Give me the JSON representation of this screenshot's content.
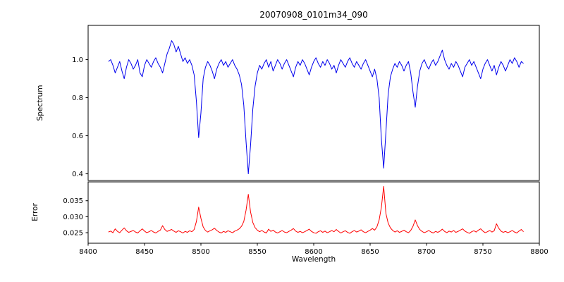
{
  "figure": {
    "title": "20070908_0101m34_090",
    "xlabel": "Wavelength",
    "ylabel_top": "Spectrum",
    "ylabel_bottom": "Error",
    "background": "#ffffff",
    "spectrum_color": "#0000ee",
    "error_color": "#ff0000"
  },
  "chart_data": [
    {
      "type": "line",
      "title": "20070908_0101m34_090",
      "ylabel": "Spectrum",
      "xlabel": "",
      "color": "#0000ee",
      "xlim": [
        8400,
        8800
      ],
      "ylim": [
        0.365,
        1.18
      ],
      "yticks": [
        0.4,
        0.6,
        0.8,
        1.0
      ],
      "ytick_labels": [
        "0.4",
        "0.6",
        "0.8",
        "1.0"
      ],
      "grid": false,
      "legend": false,
      "x_start": 8418,
      "x_step": 2,
      "values": [
        0.99,
        1.0,
        0.97,
        0.93,
        0.96,
        0.99,
        0.94,
        0.9,
        0.96,
        1.0,
        0.98,
        0.95,
        0.97,
        1.0,
        0.93,
        0.91,
        0.97,
        1.0,
        0.98,
        0.96,
        0.99,
        1.01,
        0.98,
        0.96,
        0.93,
        0.98,
        1.03,
        1.06,
        1.1,
        1.08,
        1.04,
        1.07,
        1.03,
        0.99,
        1.01,
        0.98,
        1.0,
        0.97,
        0.92,
        0.78,
        0.59,
        0.72,
        0.9,
        0.96,
        0.99,
        0.97,
        0.94,
        0.9,
        0.95,
        0.98,
        1.0,
        0.97,
        0.99,
        0.96,
        0.98,
        1.0,
        0.97,
        0.95,
        0.92,
        0.87,
        0.76,
        0.57,
        0.4,
        0.55,
        0.74,
        0.86,
        0.93,
        0.97,
        0.95,
        0.98,
        1.0,
        0.96,
        0.99,
        0.94,
        0.97,
        1.0,
        0.98,
        0.95,
        0.98,
        1.0,
        0.97,
        0.94,
        0.91,
        0.96,
        0.99,
        0.97,
        1.0,
        0.98,
        0.95,
        0.92,
        0.96,
        0.99,
        1.01,
        0.98,
        0.96,
        0.99,
        0.97,
        1.0,
        0.98,
        0.95,
        0.97,
        0.93,
        0.97,
        1.0,
        0.98,
        0.96,
        0.99,
        1.01,
        0.98,
        0.96,
        0.99,
        0.97,
        0.95,
        0.98,
        1.0,
        0.97,
        0.94,
        0.91,
        0.95,
        0.9,
        0.8,
        0.58,
        0.43,
        0.62,
        0.82,
        0.91,
        0.95,
        0.98,
        0.96,
        0.99,
        0.97,
        0.94,
        0.97,
        0.99,
        0.93,
        0.83,
        0.75,
        0.86,
        0.94,
        0.98,
        1.0,
        0.97,
        0.95,
        0.98,
        1.0,
        0.97,
        0.99,
        1.02,
        1.05,
        1.0,
        0.97,
        0.95,
        0.98,
        0.96,
        0.99,
        0.97,
        0.94,
        0.91,
        0.96,
        0.98,
        1.0,
        0.97,
        0.99,
        0.96,
        0.93,
        0.9,
        0.95,
        0.98,
        1.0,
        0.97,
        0.94,
        0.97,
        0.92,
        0.96,
        0.99,
        0.97,
        0.94,
        0.97,
        1.0,
        0.98,
        1.01,
        0.99,
        0.96,
        0.99,
        0.98
      ]
    },
    {
      "type": "line",
      "title": "",
      "ylabel": "Error",
      "xlabel": "Wavelength",
      "color": "#ff0000",
      "xlim": [
        8400,
        8800
      ],
      "ylim": [
        0.0217,
        0.0409
      ],
      "yticks": [
        0.025,
        0.03,
        0.035
      ],
      "ytick_labels": [
        "0.025",
        "0.030",
        "0.035"
      ],
      "xticks": [
        8400,
        8450,
        8500,
        8550,
        8600,
        8650,
        8700,
        8750,
        8800
      ],
      "xtick_labels": [
        "8400",
        "8450",
        "8500",
        "8550",
        "8600",
        "8650",
        "8700",
        "8750",
        "8800"
      ],
      "grid": false,
      "legend": false,
      "x_start": 8418,
      "x_step": 2,
      "values": [
        0.0252,
        0.0255,
        0.025,
        0.0262,
        0.0254,
        0.025,
        0.0258,
        0.0265,
        0.0256,
        0.0251,
        0.0254,
        0.0257,
        0.0252,
        0.0249,
        0.0256,
        0.0262,
        0.0255,
        0.025,
        0.0253,
        0.0257,
        0.0252,
        0.0249,
        0.0254,
        0.0258,
        0.0272,
        0.026,
        0.0254,
        0.0257,
        0.026,
        0.0255,
        0.0251,
        0.0256,
        0.0253,
        0.0249,
        0.0254,
        0.0251,
        0.0256,
        0.0253,
        0.026,
        0.0285,
        0.033,
        0.0295,
        0.0268,
        0.0257,
        0.0252,
        0.0256,
        0.0259,
        0.0264,
        0.0257,
        0.0252,
        0.0249,
        0.0254,
        0.0251,
        0.0256,
        0.0253,
        0.025,
        0.0255,
        0.0258,
        0.0262,
        0.027,
        0.0285,
        0.032,
        0.037,
        0.0315,
        0.0282,
        0.0266,
        0.0258,
        0.0253,
        0.0257,
        0.0252,
        0.0249,
        0.0261,
        0.0254,
        0.0258,
        0.0252,
        0.0249,
        0.0253,
        0.0257,
        0.0252,
        0.025,
        0.0254,
        0.0258,
        0.0263,
        0.0255,
        0.0251,
        0.0254,
        0.025,
        0.0253,
        0.0257,
        0.0261,
        0.0254,
        0.025,
        0.0248,
        0.0253,
        0.0256,
        0.0251,
        0.0255,
        0.025,
        0.0253,
        0.0257,
        0.0253,
        0.026,
        0.0254,
        0.0249,
        0.0253,
        0.0256,
        0.0251,
        0.0248,
        0.0253,
        0.0257,
        0.0252,
        0.0255,
        0.0259,
        0.0253,
        0.025,
        0.0254,
        0.0258,
        0.0263,
        0.0258,
        0.0268,
        0.029,
        0.033,
        0.0395,
        0.031,
        0.028,
        0.0265,
        0.0257,
        0.0252,
        0.0256,
        0.0251,
        0.0254,
        0.0258,
        0.0253,
        0.025,
        0.0257,
        0.027,
        0.029,
        0.0272,
        0.026,
        0.0254,
        0.025,
        0.0253,
        0.0257,
        0.0252,
        0.0249,
        0.0254,
        0.0251,
        0.0255,
        0.0261,
        0.0254,
        0.025,
        0.0255,
        0.0252,
        0.0257,
        0.0251,
        0.0254,
        0.0258,
        0.0262,
        0.0255,
        0.0251,
        0.0248,
        0.0253,
        0.0256,
        0.0252,
        0.0258,
        0.0262,
        0.0255,
        0.025,
        0.0253,
        0.0257,
        0.0252,
        0.0256,
        0.0278,
        0.0264,
        0.0255,
        0.0251,
        0.0254,
        0.025,
        0.0253,
        0.0257,
        0.0252,
        0.0249,
        0.0255,
        0.026,
        0.0253
      ]
    }
  ]
}
